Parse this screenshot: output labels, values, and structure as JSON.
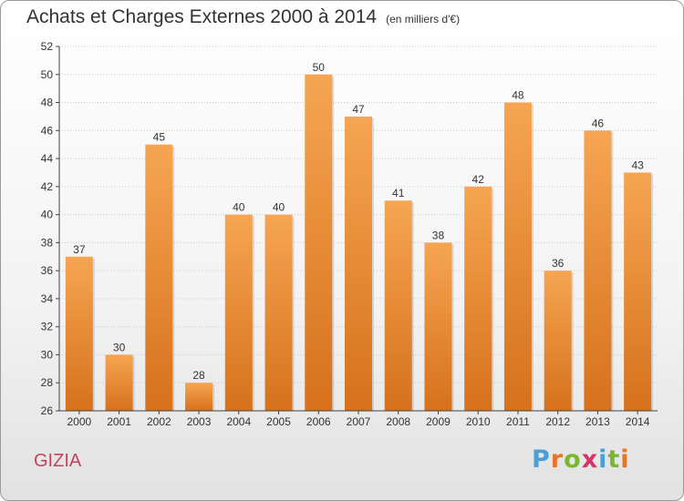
{
  "header": {
    "title": "Achats et Charges Externes 2000 à 2014",
    "unit": "(en milliers d'€)"
  },
  "footer": {
    "commune": "GIZIA",
    "logo": [
      "P",
      "r",
      "o",
      "x",
      "i",
      "t",
      "i"
    ],
    "logo_colors": [
      "#4a9fd8",
      "#e8742a",
      "#7bb631",
      "#d6336c",
      "#4a9fd8",
      "#7bb631",
      "#e8742a"
    ]
  },
  "colors": {
    "bar_light": "#f6a552",
    "bar_dark": "#d6711c",
    "grid": "#cccccc",
    "axis": "#444444"
  },
  "chart_data": {
    "type": "bar",
    "title": "Achats et Charges Externes 2000 à 2014",
    "subtitle": "(en milliers d'€)",
    "categories": [
      "2000",
      "2001",
      "2002",
      "2003",
      "2004",
      "2005",
      "2006",
      "2007",
      "2008",
      "2009",
      "2010",
      "2011",
      "2012",
      "2013",
      "2014"
    ],
    "values": [
      37,
      30,
      45,
      28,
      40,
      40,
      50,
      47,
      41,
      38,
      42,
      48,
      36,
      46,
      43
    ],
    "ylim": [
      26,
      52
    ],
    "yticks": [
      26,
      28,
      30,
      32,
      34,
      36,
      38,
      40,
      42,
      44,
      46,
      48,
      50,
      52
    ],
    "grid": true,
    "legend": "none"
  }
}
